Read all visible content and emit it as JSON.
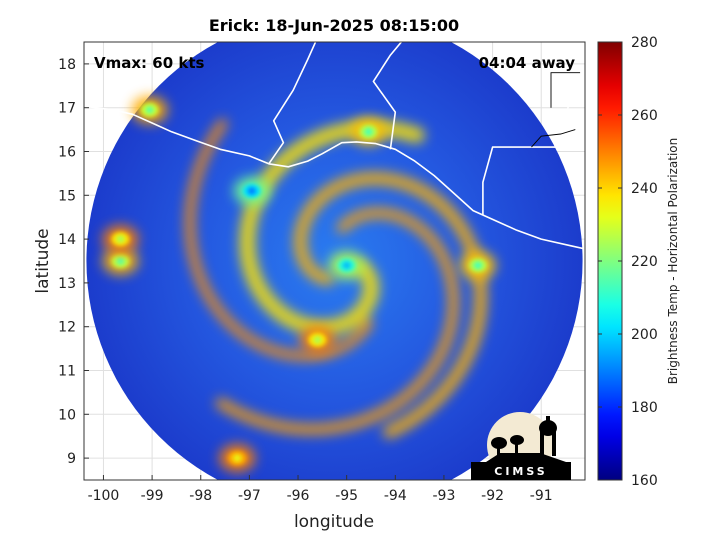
{
  "chart_data": {
    "type": "heatmap",
    "title": "Erick: 18-Jun-2025 08:15:00",
    "xlabel": "longitude",
    "ylabel": "latitude",
    "xlim": [
      -100.4,
      -90.1
    ],
    "ylim": [
      8.5,
      18.5
    ],
    "xticks": [
      -100,
      -99,
      -98,
      -97,
      -96,
      -95,
      -94,
      -93,
      -92,
      -91
    ],
    "xtick_labels": [
      "-100",
      "-99",
      "-98",
      "-97",
      "-96",
      "-95",
      "-94",
      "-93",
      "-92",
      "-91"
    ],
    "yticks": [
      9,
      10,
      11,
      12,
      13,
      14,
      15,
      16,
      17,
      18
    ],
    "ytick_labels": [
      "9",
      "10",
      "11",
      "12",
      "13",
      "14",
      "15",
      "16",
      "17",
      "18"
    ],
    "grid": true,
    "annotations": {
      "vmax": "Vmax: 60 kts",
      "time_away": "04:04 away"
    },
    "storm_center": {
      "lon": -95.0,
      "lat": 13.35
    },
    "swath": {
      "center_lon": -95.25,
      "center_lat": 13.5,
      "radius_deg": 5.1
    },
    "colorbar": {
      "label": "Brightness Temp - Horizontal Polarization",
      "min": 160,
      "max": 280,
      "ticks": [
        160,
        180,
        200,
        220,
        240,
        260,
        280
      ],
      "tick_labels": [
        "160",
        "180",
        "200",
        "220",
        "240",
        "260",
        "280"
      ]
    },
    "features": [
      {
        "name": "eye-convection",
        "lon": -95.0,
        "lat": 13.4,
        "value": 196
      },
      {
        "name": "convection-nw",
        "lon": -96.95,
        "lat": 15.1,
        "value": 188
      },
      {
        "name": "convection-coast",
        "lon": -94.55,
        "lat": 16.45,
        "value": 212
      },
      {
        "name": "convection-w1",
        "lon": -99.65,
        "lat": 13.5,
        "value": 214
      },
      {
        "name": "convection-w2",
        "lon": -99.65,
        "lat": 14.0,
        "value": 224
      },
      {
        "name": "convection-ne",
        "lon": -92.3,
        "lat": 13.4,
        "value": 212
      },
      {
        "name": "convection-s",
        "lon": -95.6,
        "lat": 11.7,
        "value": 224
      },
      {
        "name": "convection-far-nw",
        "lon": -99.05,
        "lat": 16.95,
        "value": 215
      },
      {
        "name": "band-se",
        "lon": -97.25,
        "lat": 9.0,
        "value": 232
      }
    ]
  },
  "logo": {
    "text": "CIMSS"
  },
  "colors": {
    "coastline": "#ffffff",
    "background": "#ffffff",
    "grid": "#e0e0e0"
  }
}
